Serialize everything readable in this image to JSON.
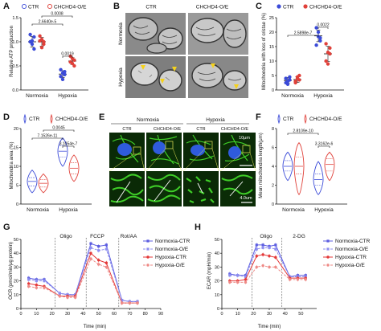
{
  "colors": {
    "ctr": "#3b4bd8",
    "oe": "#e0413a",
    "nctr": "#5b5ce0",
    "noe": "#8d8ef0",
    "hctr": "#e43838",
    "hoe": "#ee8a86",
    "micro": "#c8c8c8",
    "confocal_bg": "#0a2a06",
    "confocal_green": "#3fce28",
    "nucleus": "#2f5bdc"
  },
  "legend_ctr": "CTR",
  "legend_oe": "CHCHD4-O/E",
  "labels": {
    "normoxia": "Normoxia",
    "hypoxia": "Hypoxia",
    "ctr": "CTR",
    "oe": "CHCHD4-O/E",
    "oligo": "Oligo",
    "fccp": "FCCP",
    "rotaa": "Rot/AA",
    "twodg": "2-DG",
    "scale_top": "10μm",
    "scale_bottom": "4.0um"
  },
  "panels": [
    {
      "id": "A",
      "ylabel": "Relative ATP production",
      "yticks": [
        "0.0",
        "0.5",
        "1.0",
        "1.5"
      ],
      "groups": [
        "Normoxia",
        "Hypoxia"
      ],
      "sig": [
        "2.6640e-5",
        "0.0008",
        "0.0019"
      ]
    },
    {
      "id": "B",
      "row_labels": [
        "Normoxia",
        "Hypoxia"
      ],
      "col_labels": [
        "CTR",
        "CHCHD4-O/E"
      ]
    },
    {
      "id": "C",
      "ylabel": "Mitochondria with loss of cristae (%)",
      "yticks": [
        "0",
        "5",
        "10",
        "15",
        "20",
        "25"
      ],
      "groups": [
        "Normoxia",
        "Hypoxia"
      ],
      "sig": [
        "2.5898e-7",
        "0.0022"
      ]
    },
    {
      "id": "D",
      "ylabel": "Mitochondria area (%)",
      "yticks": [
        "0",
        "5",
        "10",
        "15",
        "20"
      ],
      "groups": [
        "Normoxia",
        "Hypoxia"
      ],
      "sig": [
        "7.1526e-11",
        "0.0045",
        "3.1054e-7"
      ]
    },
    {
      "id": "E",
      "col_headers": [
        "Normoxia",
        "Hypoxia"
      ],
      "col_labels": [
        "CTR",
        "CHCHD4-O/E",
        "CTR",
        "CHCHD4-O/E"
      ]
    },
    {
      "id": "F",
      "ylabel": "Mean mitochondria length(μm)",
      "yticks": [
        "0",
        "2",
        "4",
        "6",
        "8"
      ],
      "groups": [
        "Normoxia",
        "Hypoxia"
      ],
      "sig": [
        "2.8109e-10",
        "3.3162e-6"
      ]
    },
    {
      "id": "G",
      "ylabel": "OCR (pmol/min/μg protein)",
      "xlabel": "Time (min)",
      "yticks": [
        "0",
        "10",
        "20",
        "30",
        "40",
        "50"
      ],
      "xticks": [
        "0",
        "10",
        "20",
        "30",
        "40",
        "50",
        "60",
        "70",
        "80",
        "90"
      ],
      "series": [
        "Normoxia-CTR",
        "Normoxia-O/E",
        "Hypoxia-CTR",
        "Hypoxia-O/E"
      ]
    },
    {
      "id": "H",
      "ylabel": "ECAR (mpH/min)",
      "xlabel": "Time (min)",
      "yticks": [
        "0",
        "10",
        "20",
        "30",
        "40",
        "50"
      ],
      "xticks": [
        "0",
        "10",
        "20",
        "30",
        "40",
        "50"
      ],
      "series": [
        "Normoxia-CTR",
        "Normoxia-O/E",
        "Hypoxia-CTR",
        "Hypoxia-O/E"
      ]
    }
  ],
  "chart_data": [
    {
      "panel": "A",
      "type": "scatter",
      "ylim": [
        0,
        1.5
      ],
      "series": [
        {
          "name": "CTR",
          "group": "Normoxia",
          "points": [
            1.15,
            1.02,
            1.1,
            1.0,
            0.95,
            0.85
          ],
          "mean": 1.0,
          "err": 0.11
        },
        {
          "name": "CHCHD4-O/E",
          "group": "Normoxia",
          "points": [
            1.12,
            1.05,
            1.0,
            1.02,
            0.88,
            0.95
          ],
          "mean": 1.0,
          "err": 0.09
        },
        {
          "name": "CTR",
          "group": "Hypoxia",
          "points": [
            0.42,
            0.35,
            0.32,
            0.28,
            0.22,
            0.38
          ],
          "mean": 0.33,
          "err": 0.07
        },
        {
          "name": "CHCHD4-O/E",
          "group": "Hypoxia",
          "points": [
            0.7,
            0.65,
            0.62,
            0.58,
            0.55,
            0.5
          ],
          "mean": 0.6,
          "err": 0.07
        }
      ]
    },
    {
      "panel": "C",
      "type": "scatter",
      "ylim": [
        0,
        25
      ],
      "series": [
        {
          "name": "CTR",
          "group": "Normoxia",
          "points": [
            2.5,
            3.0,
            4.5,
            4.0,
            2.0,
            3.5
          ],
          "mean": 3.3,
          "err": 1.0
        },
        {
          "name": "CHCHD4-O/E",
          "group": "Normoxia",
          "points": [
            3.0,
            4.5,
            3.5,
            2.5,
            4.0,
            5.0
          ],
          "mean": 3.6,
          "err": 1.0
        },
        {
          "name": "CTR",
          "group": "Hypoxia",
          "points": [
            21.5,
            18.5,
            17.0,
            15.5,
            20.0,
            18.0
          ],
          "mean": 18.7,
          "err": 2.0
        },
        {
          "name": "CHCHD4-O/E",
          "group": "Hypoxia",
          "points": [
            16.0,
            13.0,
            12.5,
            10.0,
            9.0,
            14.5
          ],
          "mean": 12.5,
          "err": 2.6
        }
      ]
    },
    {
      "panel": "D",
      "type": "violin",
      "ylim": [
        0,
        20
      ],
      "series": [
        {
          "name": "CTR",
          "group": "Normoxia",
          "min": 3.0,
          "q1": 4.8,
          "median": 6.0,
          "q3": 7.0,
          "max": 9.0
        },
        {
          "name": "CHCHD4-O/E",
          "group": "Normoxia",
          "min": 3.0,
          "q1": 4.5,
          "median": 5.5,
          "q3": 6.5,
          "max": 8.0
        },
        {
          "name": "CTR",
          "group": "Hypoxia",
          "min": 10.0,
          "q1": 12.5,
          "median": 14.0,
          "q3": 15.5,
          "max": 17.5
        },
        {
          "name": "CHCHD4-O/E",
          "group": "Hypoxia",
          "min": 6.0,
          "q1": 8.0,
          "median": 9.5,
          "q3": 11.0,
          "max": 13.0
        }
      ]
    },
    {
      "panel": "F",
      "type": "violin",
      "ylim": [
        0,
        8
      ],
      "series": [
        {
          "name": "CTR",
          "group": "Normoxia",
          "min": 2.5,
          "q1": 3.5,
          "median": 4.0,
          "q3": 4.6,
          "max": 5.5
        },
        {
          "name": "CHCHD4-O/E",
          "group": "Normoxia",
          "min": 1.0,
          "q1": 3.2,
          "median": 4.0,
          "q3": 5.0,
          "max": 6.5
        },
        {
          "name": "CTR",
          "group": "Hypoxia",
          "min": 1.0,
          "q1": 2.0,
          "median": 2.6,
          "q3": 3.2,
          "max": 4.5
        },
        {
          "name": "CHCHD4-O/E",
          "group": "Hypoxia",
          "min": 2.5,
          "q1": 3.5,
          "median": 4.2,
          "q3": 4.8,
          "max": 5.5
        }
      ]
    },
    {
      "panel": "G",
      "type": "line",
      "xlim": [
        0,
        90
      ],
      "ylim": [
        0,
        50
      ],
      "x": [
        5,
        10,
        15,
        25,
        30,
        35,
        45,
        50,
        55,
        65,
        70,
        75
      ],
      "injections": [
        {
          "x": 22,
          "label": "Oligo"
        },
        {
          "x": 42,
          "label": "FCCP"
        },
        {
          "x": 63,
          "label": "Rot/AA"
        }
      ],
      "series": [
        {
          "name": "Normoxia-CTR",
          "values": [
            22,
            21,
            21,
            11,
            10,
            10,
            47,
            45,
            46,
            6,
            5,
            5
          ]
        },
        {
          "name": "Normoxia-O/E",
          "values": [
            21,
            20,
            20,
            11,
            10,
            10,
            44,
            42,
            43,
            6,
            5,
            5
          ]
        },
        {
          "name": "Hypoxia-CTR",
          "values": [
            18,
            17,
            16,
            9,
            9,
            9,
            40,
            35,
            33,
            4,
            4,
            4
          ]
        },
        {
          "name": "Hypoxia-O/E",
          "values": [
            16,
            15,
            15,
            9,
            8,
            8,
            36,
            32,
            30,
            4,
            4,
            4
          ]
        }
      ]
    },
    {
      "panel": "H",
      "type": "line",
      "xlim": [
        0,
        60
      ],
      "ylim": [
        0,
        50
      ],
      "x": [
        5,
        10,
        15,
        22,
        26,
        30,
        34,
        43,
        48,
        53
      ],
      "injections": [
        {
          "x": 19,
          "label": "Oligo"
        },
        {
          "x": 38,
          "label": "2-DG"
        }
      ],
      "series": [
        {
          "name": "Normoxia-CTR",
          "values": [
            25,
            24,
            24,
            46,
            46,
            45,
            46,
            23,
            24,
            24
          ]
        },
        {
          "name": "Normoxia-O/E",
          "values": [
            24,
            24,
            23,
            43,
            44,
            44,
            43,
            23,
            23,
            23
          ]
        },
        {
          "name": "Hypoxia-CTR",
          "values": [
            20,
            20,
            21,
            38,
            39,
            38,
            37,
            22,
            22,
            22
          ]
        },
        {
          "name": "Hypoxia-O/E",
          "values": [
            19,
            19,
            19,
            30,
            31,
            30,
            30,
            21,
            21,
            21
          ]
        }
      ]
    }
  ]
}
